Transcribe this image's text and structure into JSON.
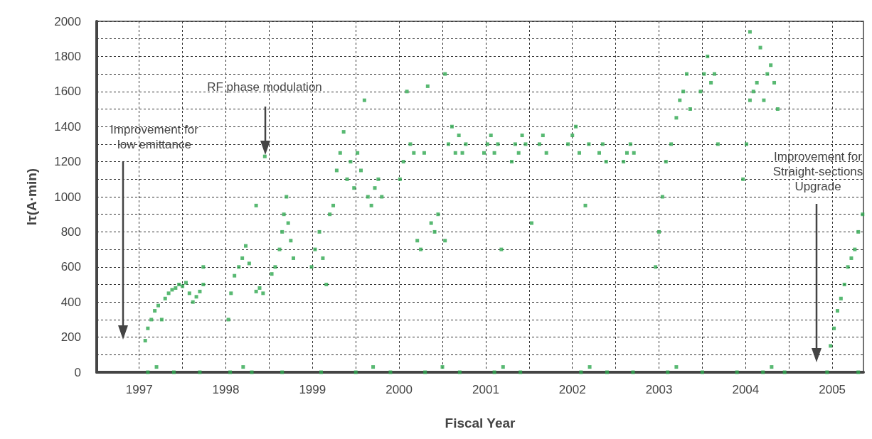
{
  "chart_data": {
    "type": "scatter",
    "xlabel": "Fiscal Year",
    "ylabel": "Iτ(A·min)",
    "xlim": [
      1996.51,
      2005.36
    ],
    "xticks": [
      1997,
      {
        "value": 1997.5,
        "label": null
      },
      1998,
      {
        "value": 1998.5,
        "label": null
      },
      1999,
      {
        "value": 1999.5,
        "label": null
      },
      2000,
      {
        "value": 2000.5,
        "label": null
      },
      2001,
      {
        "value": 2001.5,
        "label": null
      },
      2002,
      {
        "value": 2002.5,
        "label": null
      },
      2003,
      {
        "value": 2003.5,
        "label": null
      },
      2004,
      {
        "value": 2004.5,
        "label": null
      },
      2005
    ],
    "ylim": [
      0,
      2000
    ],
    "yticks": [
      0,
      {
        "value": 100,
        "label": null
      },
      200,
      {
        "value": 300,
        "label": null
      },
      400,
      {
        "value": 500,
        "label": null
      },
      600,
      {
        "value": 700,
        "label": null
      },
      800,
      {
        "value": 900,
        "label": null
      },
      1000,
      {
        "value": 1100,
        "label": null
      },
      1200,
      {
        "value": 1300,
        "label": null
      },
      1400,
      {
        "value": 1500,
        "label": null
      },
      1600,
      {
        "value": 1700,
        "label": null
      },
      1800,
      {
        "value": 1900,
        "label": null
      },
      2000
    ],
    "grid": true,
    "marker": "square",
    "series": [
      {
        "color": "#2ea84f",
        "x": [
          1997.07,
          1997.1,
          1997.14,
          1997.18,
          1997.22,
          1997.26,
          1997.3,
          1997.34,
          1997.38,
          1997.42,
          1997.46,
          1997.5,
          1997.54,
          1997.58,
          1997.62,
          1997.66,
          1997.7,
          1997.74,
          1997.74,
          1998.03,
          1998.06,
          1998.1,
          1998.15,
          1998.19,
          1998.23,
          1998.27,
          1998.35,
          1998.39,
          1998.35,
          1998.43,
          1998.45,
          1998.53,
          1998.57,
          1998.62,
          1998.65,
          1998.67,
          1998.7,
          1998.72,
          1998.75,
          1998.78,
          1998.99,
          1999.03,
          1999.08,
          1999.12,
          1999.16,
          1999.2,
          1999.24,
          1999.28,
          1999.32,
          1999.36,
          1999.4,
          1999.44,
          1999.48,
          1999.52,
          1999.56,
          1999.6,
          1999.64,
          1999.68,
          1999.72,
          1999.76,
          1999.8,
          2000.01,
          2000.05,
          2000.09,
          2000.13,
          2000.17,
          2000.21,
          2000.25,
          2000.29,
          2000.33,
          2000.37,
          2000.41,
          2000.45,
          2000.53,
          2000.57,
          2000.53,
          2000.61,
          2000.65,
          2000.69,
          2000.73,
          2000.77,
          2000.98,
          2001.02,
          2001.06,
          2001.1,
          2001.14,
          2001.18,
          2001.3,
          2001.34,
          2001.38,
          2001.42,
          2001.46,
          2001.53,
          2001.62,
          2001.66,
          2001.7,
          2001.95,
          2002.0,
          2002.04,
          2002.08,
          2002.15,
          2002.19,
          2002.31,
          2002.35,
          2002.39,
          2002.59,
          2002.63,
          2002.67,
          2002.71,
          2002.96,
          2003.0,
          2003.04,
          2003.08,
          2003.14,
          2003.2,
          2003.24,
          2003.28,
          2003.32,
          2003.36,
          2003.48,
          2003.52,
          2003.56,
          2003.6,
          2003.64,
          2003.68,
          2003.97,
          2004.01,
          2004.05,
          2004.05,
          2004.09,
          2004.13,
          2004.17,
          2004.21,
          2004.25,
          2004.29,
          2004.33,
          2004.37,
          2004.94,
          2004.98,
          2005.02,
          2005.06,
          2005.1,
          2005.14,
          2005.18,
          2005.22,
          2005.26,
          2005.3,
          2005.35,
          1997.1,
          1997.4,
          1997.7,
          1998.05,
          1998.3,
          1998.65,
          1999.1,
          1999.5,
          1999.9,
          2000.3,
          2000.7,
          2001.1,
          2001.4,
          2002.1,
          2002.4,
          2002.7,
          2003.1,
          2003.5,
          2003.9,
          2004.2,
          2004.45,
          2005.3,
          1997.2,
          1998.2,
          1999.7,
          2000.5,
          2001.2,
          2002.2,
          2003.2,
          2004.3
        ],
        "values": [
          180,
          250,
          300,
          350,
          380,
          300,
          420,
          450,
          470,
          480,
          500,
          490,
          510,
          450,
          400,
          430,
          460,
          600,
          500,
          300,
          450,
          550,
          600,
          650,
          720,
          620,
          460,
          480,
          950,
          450,
          1230,
          560,
          600,
          700,
          800,
          900,
          1000,
          850,
          750,
          650,
          600,
          700,
          800,
          650,
          500,
          900,
          950,
          1150,
          1250,
          1370,
          1100,
          1200,
          1050,
          1250,
          1150,
          1550,
          1000,
          950,
          1050,
          1100,
          1000,
          1100,
          1200,
          1600,
          1300,
          1250,
          750,
          700,
          1250,
          1630,
          850,
          800,
          900,
          750,
          1300,
          1700,
          1400,
          1250,
          1350,
          1250,
          1300,
          1250,
          1300,
          1350,
          1250,
          1300,
          700,
          1200,
          1300,
          1250,
          1350,
          1300,
          850,
          1300,
          1350,
          1250,
          1300,
          1350,
          1400,
          1250,
          950,
          1300,
          1250,
          1300,
          1200,
          1200,
          1250,
          1300,
          1250,
          600,
          800,
          1000,
          1200,
          1300,
          1450,
          1550,
          1600,
          1700,
          1500,
          1600,
          1700,
          1800,
          1650,
          1700,
          1300,
          1100,
          1300,
          1550,
          1940,
          1600,
          1650,
          1850,
          1550,
          1700,
          1750,
          1650,
          1500,
          0,
          150,
          250,
          350,
          420,
          500,
          600,
          650,
          700,
          800,
          900,
          0,
          0,
          0,
          0,
          0,
          0,
          0,
          0,
          0,
          0,
          0,
          0,
          0,
          0,
          0,
          0,
          0,
          0,
          0,
          0,
          0,
          0,
          30,
          30,
          30,
          30,
          30,
          30,
          30,
          30
        ]
      }
    ],
    "annotations": [
      "Improvement for\nlow emittance",
      "RF phase modulation",
      "Improvement for\nStraight-sections\nUpgrade"
    ]
  }
}
